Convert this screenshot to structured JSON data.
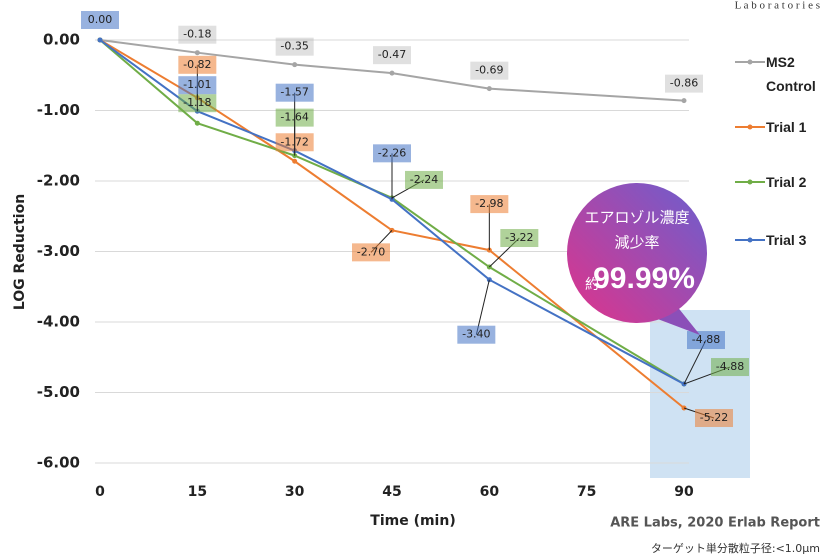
{
  "chart_data": {
    "type": "line",
    "x_label": "Time (min)",
    "y_label": "LOG Reduction",
    "x": [
      0,
      15,
      30,
      45,
      60,
      90
    ],
    "xlim": [
      0,
      90
    ],
    "xticks": [
      0,
      15,
      30,
      45,
      60,
      75,
      90
    ],
    "ylim": [
      -6,
      0
    ],
    "yticks": [
      {
        "value": -6,
        "label": "-6.00"
      },
      {
        "value": -5,
        "label": "-5.00"
      },
      {
        "value": -4,
        "label": "-4.00"
      },
      {
        "value": -3,
        "label": "-3.00"
      },
      {
        "value": -2,
        "label": "-2.00"
      },
      {
        "value": -1,
        "label": "-1.00"
      },
      {
        "value": 0,
        "label": "0.00"
      }
    ],
    "grid": true,
    "legend": "right",
    "series": [
      {
        "name": "MS2 Control",
        "color": "#a5a5a5",
        "values": [
          0,
          -0.18,
          -0.35,
          -0.47,
          -0.69,
          -0.86
        ],
        "value_labels": [
          null,
          "-0.18",
          "-0.35",
          "-0.47",
          "-0.69",
          "-0.86"
        ]
      },
      {
        "name": "Trial 1",
        "color": "#ed7d31",
        "values": [
          0,
          -0.82,
          -1.72,
          -2.7,
          -2.98,
          -5.22
        ],
        "value_labels": [
          null,
          "-0.82",
          "-1.72",
          "-2.70",
          "-2.98",
          "-5.22"
        ]
      },
      {
        "name": "Trial 2",
        "color": "#70ad47",
        "values": [
          0,
          -1.18,
          -1.64,
          -2.24,
          -3.22,
          -4.88
        ],
        "value_labels": [
          null,
          "-1.18",
          "-1.64",
          "-2.24",
          "-3.22",
          "-4.88"
        ]
      },
      {
        "name": "Trial 3",
        "color": "#4472c4",
        "values": [
          0,
          -1.01,
          -1.57,
          -2.26,
          -3.4,
          -4.88
        ],
        "value_labels": [
          "0.00",
          "-1.01",
          "-1.57",
          "-2.26",
          "-3.40",
          "-4.88"
        ]
      }
    ],
    "annotations": {
      "watermark": "L a b o r a t o r i e s",
      "bubble_line1": "エアロゾル濃度",
      "bubble_line2": "減少率",
      "bubble_prefix": "約",
      "bubble_value": "99.99%",
      "source": "ARE Labs, 2020 Erlab Report",
      "note": "ターゲット単分散粒子径:<1.0μm"
    }
  }
}
